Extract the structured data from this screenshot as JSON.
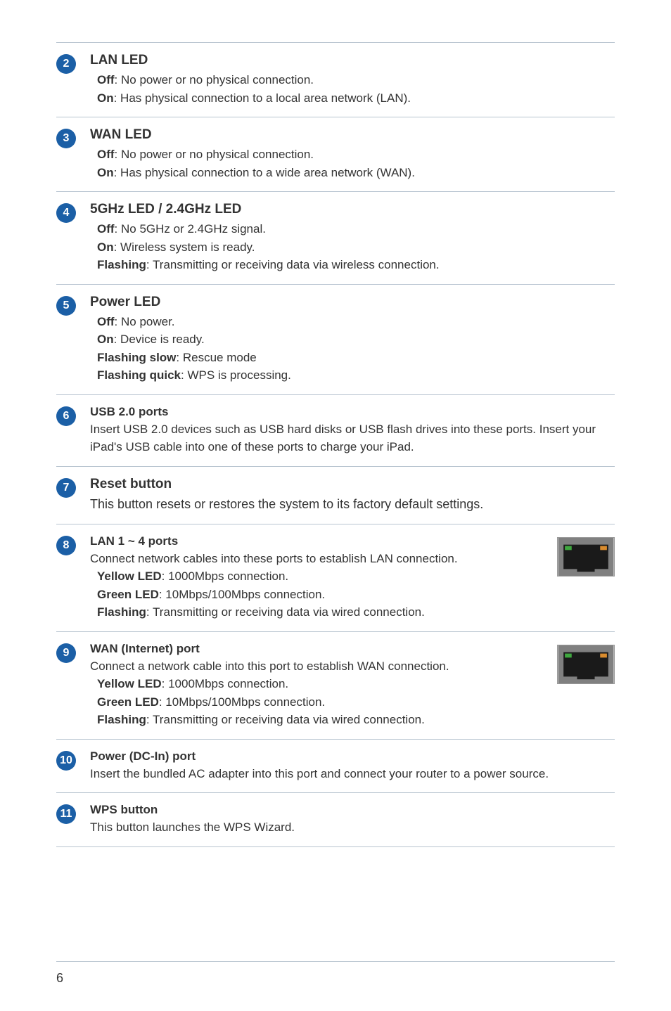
{
  "pageNumber": "6",
  "colors": {
    "badge_bg": "#1b5fa6",
    "badge_text": "#ffffff",
    "rule": "#b8c4d0",
    "body_text": "#333333",
    "port_body": "#808080",
    "port_dark": "#1a1a1a",
    "port_led_green": "#3fa83f",
    "port_led_orange": "#d98c2e"
  },
  "items": [
    {
      "num": "2",
      "title": "LAN LED",
      "lines": [
        {
          "label": "Off",
          "text": ": No power or no physical connection."
        },
        {
          "label": "On",
          "text": ": Has physical connection to a local area network (LAN)."
        }
      ]
    },
    {
      "num": "3",
      "title": "WAN LED",
      "lines": [
        {
          "label": "Off",
          "text": ": No power or no physical connection."
        },
        {
          "label": "On",
          "text": ": Has physical connection to a wide area network (WAN)."
        }
      ]
    },
    {
      "num": "4",
      "title": "5GHz LED / 2.4GHz LED",
      "lines": [
        {
          "label": "Off",
          "text": ": No 5GHz or 2.4GHz signal."
        },
        {
          "label": "On",
          "text": ": Wireless system is ready."
        },
        {
          "label": "Flashing",
          "text": ": Transmitting or receiving data via wireless connection."
        }
      ]
    },
    {
      "num": "5",
      "title": "Power LED",
      "lines": [
        {
          "label": "Off",
          "text": ": No power."
        },
        {
          "label": "On",
          "text": ": Device is ready."
        },
        {
          "label": "Flashing slow",
          "text": ": Rescue mode"
        },
        {
          "label": "Flashing quick",
          "text": ": WPS is processing."
        }
      ]
    },
    {
      "num": "6",
      "subtitle": "USB 2.0 ports",
      "desc": "Insert USB 2.0 devices such as USB hard disks or USB flash drives into these ports. Insert your iPad's USB cable into one of these ports to charge your iPad."
    },
    {
      "num": "7",
      "title": "Reset button",
      "desc_large": "This button resets or restores the system to its factory default settings."
    },
    {
      "num": "8",
      "subtitle": "LAN 1 ~ 4 ports",
      "desc": "Connect network cables into these ports to establish LAN connection.",
      "lines": [
        {
          "label": "Yellow LED",
          "text": ": 1000Mbps connection."
        },
        {
          "label": "Green LED",
          "text": ": 10Mbps/100Mbps connection."
        },
        {
          "label": "Flashing",
          "text": ": Transmitting or receiving data via wired connection."
        }
      ],
      "image": true
    },
    {
      "num": "9",
      "subtitle": "WAN (Internet) port",
      "desc": "Connect a network cable into this port to establish WAN connection.",
      "lines": [
        {
          "label": "Yellow LED",
          "text": ": 1000Mbps connection."
        },
        {
          "label": "Green LED",
          "text": ": 10Mbps/100Mbps connection."
        },
        {
          "label": "Flashing",
          "text": ": Transmitting or receiving data via wired connection."
        }
      ],
      "image": true
    },
    {
      "num": "10",
      "subtitle": "Power (DC-In) port",
      "desc": "Insert the bundled AC adapter into this port and connect your router to a power source."
    },
    {
      "num": "11",
      "subtitle": "WPS button",
      "desc": "This button launches the WPS Wizard."
    }
  ]
}
